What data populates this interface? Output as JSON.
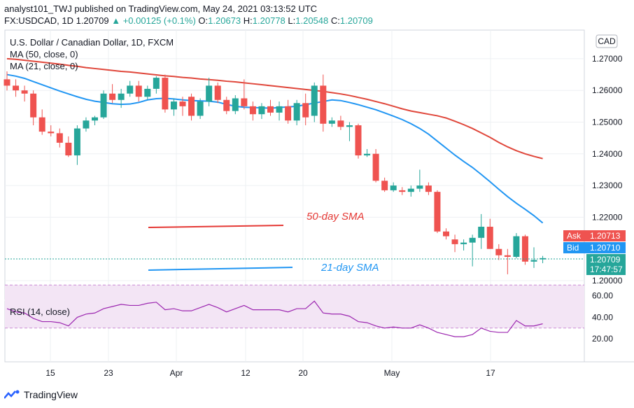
{
  "header": {
    "line1": "analyst101_TWJ published on TradingView.com, May 24, 2021 03:13:52 UTC",
    "symbol": "FX:USDCAD, 1D",
    "last": "1.20709",
    "arrow": "▲",
    "change": "+0.00125 (+0.1%)",
    "o_label": "O:",
    "o": "1.20673",
    "h_label": "H:",
    "h": "1.20778",
    "l_label": "L:",
    "l": "1.20548",
    "c_label": "C:",
    "c": "1.20709"
  },
  "legend": {
    "title": "U.S. Dollar / Canadian Dollar, 1D, FXCM",
    "ma50": "MA (50, close, 0)",
    "ma21": "MA (21, close, 0)"
  },
  "currency_badge": "CAD",
  "annotations": {
    "sma50": "50-day SMA",
    "sma21": "21-day SMA"
  },
  "price_tags": {
    "ask_label": "Ask",
    "ask": "1.20713",
    "bid_label": "Bid",
    "bid": "1.20710",
    "last": "1.20709",
    "countdown": "17:47:57"
  },
  "rsi_label": "RSI (14, close)",
  "logo_text": "TradingView",
  "colors": {
    "up": "#26a69a",
    "down": "#ef5350",
    "ma50": "#e0473b",
    "ma21": "#2196f3",
    "rsi": "#9c27b0",
    "rsi_band": "#f3e5f5",
    "ask": "#ef5350",
    "bid": "#2196f3",
    "last": "#26a69a"
  },
  "chart_data": {
    "type": "candlestick",
    "y_ticks": [
      "1.27000",
      "1.26000",
      "1.25000",
      "1.24000",
      "1.23000",
      "1.22000",
      "1.20000"
    ],
    "x_ticks": [
      "15",
      "23",
      "Apr",
      "12",
      "20",
      "May",
      "17"
    ],
    "rsi_ticks": [
      "60.00",
      "40.00",
      "20.00"
    ],
    "rsi_band": [
      30,
      70
    ],
    "candles": [
      [
        1.2635,
        1.266,
        1.26,
        1.2615
      ],
      [
        1.2615,
        1.2635,
        1.258,
        1.26
      ],
      [
        1.26,
        1.2615,
        1.2565,
        1.259
      ],
      [
        1.259,
        1.26,
        1.249,
        1.2515
      ],
      [
        1.2515,
        1.254,
        1.246,
        1.247
      ],
      [
        1.247,
        1.249,
        1.2455,
        1.2465
      ],
      [
        1.2465,
        1.248,
        1.242,
        1.2435
      ],
      [
        1.2435,
        1.2455,
        1.239,
        1.2395
      ],
      [
        1.2395,
        1.249,
        1.2365,
        1.248
      ],
      [
        1.248,
        1.2515,
        1.247,
        1.2505
      ],
      [
        1.2505,
        1.252,
        1.249,
        1.2515
      ],
      [
        1.2515,
        1.26,
        1.251,
        1.259
      ],
      [
        1.259,
        1.262,
        1.256,
        1.257
      ],
      [
        1.257,
        1.2605,
        1.2545,
        1.259
      ],
      [
        1.259,
        1.263,
        1.258,
        1.2615
      ],
      [
        1.2615,
        1.263,
        1.2565,
        1.258
      ],
      [
        1.258,
        1.2615,
        1.257,
        1.2605
      ],
      [
        1.2605,
        1.2645,
        1.259,
        1.264
      ],
      [
        1.264,
        1.265,
        1.253,
        1.254
      ],
      [
        1.254,
        1.2575,
        1.252,
        1.2565
      ],
      [
        1.2565,
        1.258,
        1.252,
        1.255
      ],
      [
        1.258,
        1.259,
        1.2505,
        1.252
      ],
      [
        1.252,
        1.2575,
        1.251,
        1.2565
      ],
      [
        1.2565,
        1.264,
        1.255,
        1.2615
      ],
      [
        1.2615,
        1.2625,
        1.256,
        1.257
      ],
      [
        1.257,
        1.258,
        1.2525,
        1.2535
      ],
      [
        1.2535,
        1.2585,
        1.2525,
        1.2575
      ],
      [
        1.2575,
        1.2635,
        1.254,
        1.255
      ],
      [
        1.255,
        1.2565,
        1.2505,
        1.2525
      ],
      [
        1.2525,
        1.256,
        1.251,
        1.255
      ],
      [
        1.255,
        1.257,
        1.252,
        1.253
      ],
      [
        1.253,
        1.2565,
        1.2505,
        1.255
      ],
      [
        1.255,
        1.257,
        1.2495,
        1.2505
      ],
      [
        1.2505,
        1.257,
        1.249,
        1.256
      ],
      [
        1.256,
        1.259,
        1.249,
        1.2515
      ],
      [
        1.252,
        1.2625,
        1.25,
        1.2615
      ],
      [
        1.2615,
        1.265,
        1.247,
        1.2495
      ],
      [
        1.2495,
        1.2515,
        1.2485,
        1.2505
      ],
      [
        1.2505,
        1.252,
        1.2475,
        1.2485
      ],
      [
        1.2485,
        1.25,
        1.244,
        1.249
      ],
      [
        1.249,
        1.2495,
        1.2385,
        1.2395
      ],
      [
        1.2395,
        1.2415,
        1.239,
        1.24
      ],
      [
        1.24,
        1.2415,
        1.231,
        1.2315
      ],
      [
        1.2315,
        1.2325,
        1.228,
        1.2285
      ],
      [
        1.2285,
        1.231,
        1.228,
        1.23
      ],
      [
        1.2285,
        1.2295,
        1.227,
        1.228
      ],
      [
        1.228,
        1.23,
        1.2265,
        1.229
      ],
      [
        1.229,
        1.235,
        1.228,
        1.23
      ],
      [
        1.23,
        1.231,
        1.227,
        1.228
      ],
      [
        1.228,
        1.2285,
        1.215,
        1.2155
      ],
      [
        1.2155,
        1.2165,
        1.213,
        1.214
      ],
      [
        1.213,
        1.2145,
        1.209,
        1.2115
      ],
      [
        1.2115,
        1.213,
        1.2095,
        1.212
      ],
      [
        1.212,
        1.2145,
        1.2045,
        1.2135
      ],
      [
        1.2135,
        1.221,
        1.21,
        1.217
      ],
      [
        1.217,
        1.2195,
        1.21,
        1.21
      ],
      [
        1.21,
        1.2115,
        1.2065,
        1.208
      ],
      [
        1.208,
        1.21,
        1.202,
        1.2075
      ],
      [
        1.2075,
        1.215,
        1.207,
        1.214
      ],
      [
        1.214,
        1.2145,
        1.205,
        1.206
      ],
      [
        1.206,
        1.2105,
        1.204,
        1.2065
      ],
      [
        1.2067,
        1.2078,
        1.2055,
        1.2071
      ]
    ],
    "ma50": [
      1.27,
      1.2698,
      1.2695,
      1.2692,
      1.2689,
      1.2686,
      1.2683,
      1.2679,
      1.2676,
      1.2672,
      1.2669,
      1.2666,
      1.2663,
      1.266,
      1.2658,
      1.2655,
      1.2652,
      1.2649,
      1.2646,
      1.2644,
      1.2641,
      1.2639,
      1.2636,
      1.2634,
      1.2632,
      1.2629,
      1.2627,
      1.2624,
      1.2621,
      1.2618,
      1.2615,
      1.2612,
      1.2609,
      1.2606,
      1.2603,
      1.26,
      1.2597,
      1.2593,
      1.2589,
      1.2584,
      1.2578,
      1.2572,
      1.2565,
      1.2558,
      1.255,
      1.2542,
      1.2535,
      1.253,
      1.2525,
      1.252,
      1.2513,
      1.2503,
      1.2492,
      1.248,
      1.2466,
      1.2452,
      1.2436,
      1.2422,
      1.241,
      1.24,
      1.2392,
      1.2385
    ],
    "ma21": [
      1.265,
      1.2645,
      1.2638,
      1.2628,
      1.2618,
      1.2608,
      1.2598,
      1.2589,
      1.258,
      1.2572,
      1.2566,
      1.2562,
      1.2558,
      1.2556,
      1.2557,
      1.2562,
      1.257,
      1.2574,
      1.2575,
      1.2573,
      1.257,
      1.2568,
      1.2567,
      1.2566,
      1.2563,
      1.2556,
      1.255,
      1.2547,
      1.2546,
      1.2545,
      1.2544,
      1.2546,
      1.2548,
      1.255,
      1.2555,
      1.256,
      1.2565,
      1.257,
      1.2568,
      1.2562,
      1.2555,
      1.2547,
      1.2539,
      1.2529,
      1.2519,
      1.2508,
      1.2495,
      1.248,
      1.2462,
      1.244,
      1.2418,
      1.2396,
      1.2376,
      1.2357,
      1.2335,
      1.2312,
      1.2288,
      1.2265,
      1.2244,
      1.2225,
      1.2205,
      1.2182
    ],
    "rsi": [
      48,
      45,
      44,
      39,
      36,
      36,
      35,
      32,
      40,
      43,
      44,
      48,
      50,
      52,
      51,
      51,
      53,
      54,
      47,
      48,
      46,
      46,
      49,
      52,
      49,
      45,
      48,
      51,
      47,
      47,
      47,
      47,
      45,
      48,
      48,
      55,
      44,
      43,
      43,
      41,
      36,
      35,
      32,
      30,
      31,
      30,
      30,
      33,
      30,
      26,
      24,
      22,
      22,
      24,
      30,
      27,
      26,
      26,
      37,
      32,
      32,
      34
    ]
  }
}
